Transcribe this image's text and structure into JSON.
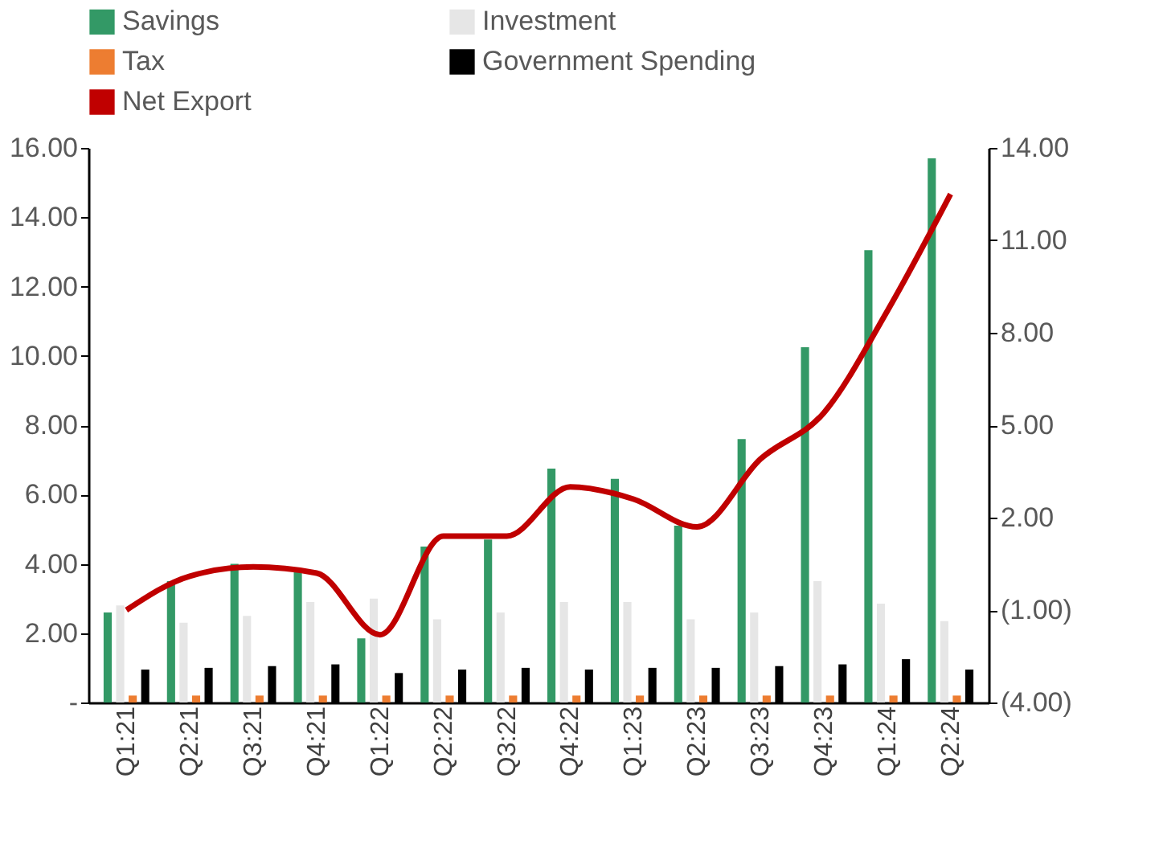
{
  "chart_data": {
    "type": "bar",
    "categories": [
      "Q1:21",
      "Q2:21",
      "Q3:21",
      "Q4:21",
      "Q1:22",
      "Q2:22",
      "Q3:22",
      "Q4:22",
      "Q1:23",
      "Q2:23",
      "Q3:23",
      "Q4:23",
      "Q1:24",
      "Q2:24"
    ],
    "series": [
      {
        "name": "Savings",
        "color": "#339966",
        "values": [
          2.6,
          3.5,
          4.0,
          3.85,
          1.85,
          4.5,
          4.7,
          6.75,
          6.45,
          5.1,
          7.6,
          10.25,
          13.05,
          15.7
        ]
      },
      {
        "name": "Investment",
        "color": "#e6e6e6",
        "values": [
          2.8,
          2.3,
          2.5,
          2.9,
          3.0,
          2.4,
          2.6,
          2.9,
          2.9,
          2.4,
          2.6,
          3.5,
          2.85,
          2.35
        ]
      },
      {
        "name": "Tax",
        "color": "#ed7d31",
        "values": [
          0.2,
          0.2,
          0.2,
          0.2,
          0.2,
          0.2,
          0.2,
          0.2,
          0.2,
          0.2,
          0.2,
          0.2,
          0.2,
          0.2
        ]
      },
      {
        "name": "Government Spending",
        "color": "#000000",
        "values": [
          0.95,
          1.0,
          1.05,
          1.1,
          0.85,
          0.95,
          1.0,
          0.95,
          1.0,
          1.0,
          1.05,
          1.1,
          1.25,
          0.95
        ]
      },
      {
        "name": "Net Export",
        "color": "#c00000",
        "type": "line",
        "axis": "y2",
        "values": [
          -1.0,
          0.1,
          0.4,
          0.2,
          -1.8,
          1.4,
          1.4,
          3.0,
          2.6,
          1.7,
          3.9,
          5.4,
          8.7,
          12.5
        ]
      }
    ],
    "ylim": [
      0,
      16
    ],
    "yticks": [
      {
        "value": 0,
        "label": "-"
      },
      {
        "value": 2,
        "label": "2.00"
      },
      {
        "value": 4,
        "label": "4.00"
      },
      {
        "value": 6,
        "label": "6.00"
      },
      {
        "value": 8,
        "label": "8.00"
      },
      {
        "value": 10,
        "label": "10.00"
      },
      {
        "value": 12,
        "label": "12.00"
      },
      {
        "value": 14,
        "label": "14.00"
      },
      {
        "value": 16,
        "label": "16.00"
      }
    ],
    "y2lim": [
      -4,
      14
    ],
    "y2ticks": [
      {
        "value": -4,
        "label": "(4.00)"
      },
      {
        "value": -1,
        "label": "(1.00)"
      },
      {
        "value": 2,
        "label": "2.00"
      },
      {
        "value": 5,
        "label": "5.00"
      },
      {
        "value": 8,
        "label": "8.00"
      },
      {
        "value": 11,
        "label": "11.00"
      },
      {
        "value": 14,
        "label": "14.00"
      }
    ],
    "grid": false,
    "legend": "top",
    "line_style": "solid",
    "marker": "none"
  }
}
